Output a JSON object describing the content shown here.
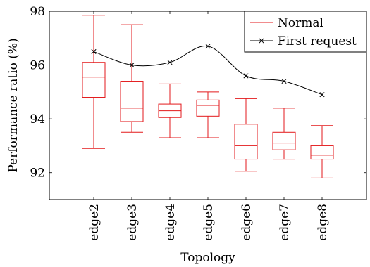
{
  "chart_data": {
    "type": "box",
    "xlabel": "Topology",
    "ylabel": "Performance ratio (%)",
    "categories": [
      "edge2",
      "edge3",
      "edge4",
      "edge5",
      "edge6",
      "edge7",
      "edge8"
    ],
    "ylim": [
      91,
      98
    ],
    "yticks": [
      92,
      94,
      96,
      98
    ],
    "ytick_labels": [
      "92",
      "94",
      "96",
      "98"
    ],
    "grid": false,
    "legend_position": "top-right",
    "series": [
      {
        "name": "Normal",
        "kind": "boxplot",
        "color": "#e31a1c",
        "boxes": [
          {
            "min": 92.9,
            "q1": 94.8,
            "median": 95.55,
            "q3": 96.1,
            "max": 97.85
          },
          {
            "min": 93.5,
            "q1": 93.9,
            "median": 94.4,
            "q3": 95.4,
            "max": 97.5
          },
          {
            "min": 93.3,
            "q1": 94.05,
            "median": 94.3,
            "q3": 94.55,
            "max": 95.3
          },
          {
            "min": 93.3,
            "q1": 94.1,
            "median": 94.5,
            "q3": 94.7,
            "max": 95.0
          },
          {
            "min": 92.05,
            "q1": 92.5,
            "median": 93.0,
            "q3": 93.8,
            "max": 94.75
          },
          {
            "min": 92.5,
            "q1": 92.85,
            "median": 93.1,
            "q3": 93.5,
            "max": 94.4
          },
          {
            "min": 91.8,
            "q1": 92.5,
            "median": 92.65,
            "q3": 93.0,
            "max": 93.75
          }
        ]
      },
      {
        "name": "First request",
        "kind": "line",
        "color": "#000000",
        "marker": "x",
        "values": [
          96.5,
          96.0,
          96.1,
          96.7,
          95.6,
          95.4,
          94.9
        ]
      }
    ]
  }
}
